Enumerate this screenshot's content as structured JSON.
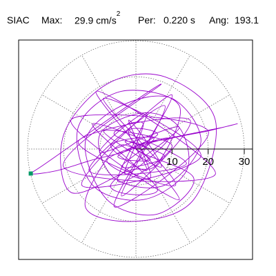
{
  "header": {
    "station": "SIAC",
    "max_label": "Max:",
    "max_value": "29.9 cm/s",
    "max_exponent": "2",
    "per_label": "Per:",
    "per_value": "0.220 s",
    "ang_label": "Ang:",
    "ang_value": "193.1"
  },
  "colors": {
    "trace": "#9900cc",
    "endpoint": "#009966",
    "grid": "#555555",
    "axis": "#000000"
  },
  "chart_data": {
    "type": "polar-particle-motion",
    "title": "",
    "rings": [
      10,
      20,
      30
    ],
    "tick_labels": [
      "10",
      "20",
      "30"
    ],
    "spoke_angles_deg": [
      0,
      30,
      60,
      90,
      120,
      150,
      180,
      210,
      240,
      270,
      300,
      330
    ],
    "r_max": 30,
    "grid": true,
    "max_point": {
      "angle_deg": 193.1,
      "radius": 29.9
    },
    "trace": [
      [
        0,
        0
      ],
      [
        2,
        1
      ],
      [
        -3,
        2
      ],
      [
        4,
        -3
      ],
      [
        -5,
        -2
      ],
      [
        6,
        4
      ],
      [
        -2,
        5
      ],
      [
        3,
        -6
      ],
      [
        -7,
        1
      ],
      [
        5,
        3
      ],
      [
        -4,
        -5
      ],
      [
        8,
        -2
      ],
      [
        -6,
        4
      ],
      [
        2,
        7
      ],
      [
        -3,
        -7
      ],
      [
        9,
        3
      ],
      [
        -8,
        -3
      ],
      [
        4,
        -8
      ],
      [
        -2,
        8
      ],
      [
        7,
        -5
      ],
      [
        -9,
        5
      ],
      [
        10,
        1
      ],
      [
        -5,
        -9
      ],
      [
        3,
        10
      ],
      [
        -10,
        -1
      ],
      [
        12,
        6
      ],
      [
        -7,
        -10
      ],
      [
        6,
        -11
      ],
      [
        -12,
        7
      ],
      [
        14,
        -4
      ],
      [
        -13,
        -6
      ],
      [
        8,
        12
      ],
      [
        -4,
        -13
      ],
      [
        15,
        8
      ],
      [
        -16,
        2
      ],
      [
        11,
        -10
      ],
      [
        -9,
        14
      ],
      [
        18,
        -2
      ],
      [
        -15,
        -10
      ],
      [
        10,
        15
      ],
      [
        -6,
        -16
      ],
      [
        20,
        5
      ],
      [
        -18,
        8
      ],
      [
        12,
        -14
      ],
      [
        -11,
        16
      ],
      [
        22,
        -7
      ],
      [
        -20,
        -5
      ],
      [
        7,
        18
      ],
      [
        -25,
        -4
      ],
      [
        -29.1,
        -6.8
      ],
      [
        -22,
        -6
      ],
      [
        -12,
        -3
      ],
      [
        -4,
        -1
      ],
      [
        5,
        2
      ],
      [
        14,
        4
      ],
      [
        24,
        6
      ],
      [
        28,
        7
      ],
      [
        20,
        5
      ],
      [
        10,
        3
      ],
      [
        0,
        0
      ],
      [
        16,
        -8
      ],
      [
        6,
        -18
      ],
      [
        -8,
        -14
      ],
      [
        -14,
        2
      ],
      [
        -4,
        12
      ],
      [
        10,
        14
      ],
      [
        18,
        2
      ],
      [
        8,
        -10
      ],
      [
        -6,
        -8
      ],
      [
        -10,
        4
      ],
      [
        2,
        10
      ],
      [
        12,
        6
      ],
      [
        14,
        -6
      ],
      [
        2,
        -14
      ],
      [
        -12,
        -10
      ],
      [
        -16,
        6
      ],
      [
        -4,
        16
      ],
      [
        12,
        12
      ],
      [
        6,
        -4
      ],
      [
        -2,
        -6
      ],
      [
        -18,
        -12
      ],
      [
        -20,
        4
      ],
      [
        -8,
        18
      ],
      [
        8,
        20
      ],
      [
        22,
        8
      ],
      [
        16,
        -14
      ],
      [
        0,
        -20
      ],
      [
        -14,
        -16
      ],
      [
        -6,
        0
      ],
      [
        0,
        0
      ]
    ]
  }
}
